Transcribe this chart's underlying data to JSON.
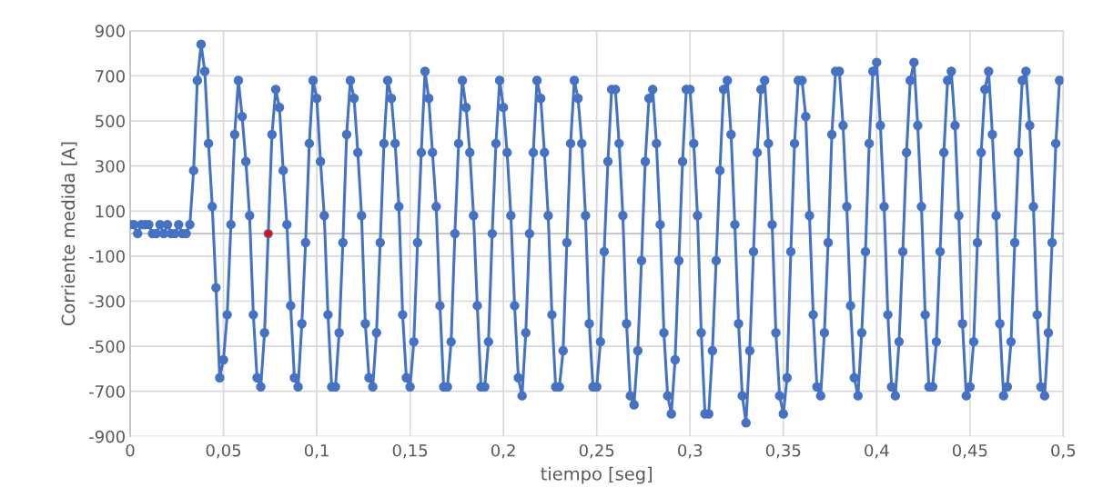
{
  "chart_data": {
    "type": "line",
    "xlabel": "tiempo [seg]",
    "ylabel": "Corriente medida [A]",
    "xlim": [
      0,
      0.5
    ],
    "ylim": [
      -900,
      900
    ],
    "xticks": [
      0,
      {
        "value": 0.05,
        "label": "0,05"
      },
      {
        "value": 0.1,
        "label": "0,1"
      },
      {
        "value": 0.15,
        "label": "0,15"
      },
      {
        "value": 0.2,
        "label": "0,2"
      },
      {
        "value": 0.25,
        "label": "0,25"
      },
      {
        "value": 0.3,
        "label": "0,3"
      },
      {
        "value": 0.35,
        "label": "0,35"
      },
      {
        "value": 0.4,
        "label": "0,4"
      },
      {
        "value": 0.45,
        "label": "0,45"
      },
      {
        "value": 0.5,
        "label": "0,5"
      }
    ],
    "yticks": [
      -900,
      -700,
      -500,
      -300,
      -100,
      100,
      300,
      500,
      700,
      900
    ],
    "grid": true,
    "marker": "circle",
    "line_style": "solid",
    "series": [
      {
        "color": "#4472c4",
        "x": [
          0,
          0.002,
          0.004,
          0.006,
          0.008,
          0.01,
          0.012,
          0.014,
          0.016,
          0.018,
          0.02,
          0.022,
          0.024,
          0.026,
          0.028,
          0.03,
          0.032,
          0.034,
          0.036,
          0.038,
          0.04,
          0.042,
          0.044,
          0.046,
          0.048,
          0.05,
          0.052,
          0.054,
          0.056,
          0.058,
          0.06,
          0.062,
          0.064,
          0.066,
          0.068,
          0.07,
          0.072,
          0.074,
          0.076,
          0.078,
          0.08,
          0.082,
          0.084,
          0.086,
          0.088,
          0.09,
          0.092,
          0.094,
          0.096,
          0.098,
          0.1,
          0.102,
          0.104,
          0.106,
          0.108,
          0.11,
          0.112,
          0.114,
          0.116,
          0.118,
          0.12,
          0.122,
          0.124,
          0.126,
          0.128,
          0.13,
          0.132,
          0.134,
          0.136,
          0.138,
          0.14,
          0.142,
          0.144,
          0.146,
          0.148,
          0.15,
          0.152,
          0.154,
          0.156,
          0.158,
          0.16,
          0.162,
          0.164,
          0.166,
          0.168,
          0.17,
          0.172,
          0.174,
          0.176,
          0.178,
          0.18,
          0.182,
          0.184,
          0.186,
          0.188,
          0.19,
          0.192,
          0.194,
          0.196,
          0.198,
          0.2,
          0.202,
          0.204,
          0.206,
          0.208,
          0.21,
          0.212,
          0.214,
          0.216,
          0.218,
          0.22,
          0.222,
          0.224,
          0.226,
          0.228,
          0.23,
          0.232,
          0.234,
          0.236,
          0.238,
          0.24,
          0.242,
          0.244,
          0.246,
          0.248,
          0.25,
          0.252,
          0.254,
          0.256,
          0.258,
          0.26,
          0.262,
          0.264,
          0.266,
          0.268,
          0.27,
          0.272,
          0.274,
          0.276,
          0.278,
          0.28,
          0.282,
          0.284,
          0.286,
          0.288,
          0.29,
          0.292,
          0.294,
          0.296,
          0.298,
          0.3,
          0.302,
          0.304,
          0.306,
          0.308,
          0.31,
          0.312,
          0.314,
          0.316,
          0.318,
          0.32,
          0.322,
          0.324,
          0.326,
          0.328,
          0.33,
          0.332,
          0.334,
          0.336,
          0.338,
          0.34,
          0.342,
          0.344,
          0.346,
          0.348,
          0.35,
          0.352,
          0.354,
          0.356,
          0.358,
          0.36,
          0.362,
          0.364,
          0.366,
          0.368,
          0.37,
          0.372,
          0.374,
          0.376,
          0.378,
          0.38,
          0.382,
          0.384,
          0.386,
          0.388,
          0.39,
          0.392,
          0.394,
          0.396,
          0.398,
          0.4,
          0.402,
          0.404,
          0.406,
          0.408,
          0.41,
          0.412,
          0.414,
          0.416,
          0.418,
          0.42,
          0.422,
          0.424,
          0.426,
          0.428,
          0.43,
          0.432,
          0.434,
          0.436,
          0.438,
          0.44,
          0.442,
          0.444,
          0.446,
          0.448,
          0.45,
          0.452,
          0.454,
          0.456,
          0.458,
          0.46,
          0.462,
          0.464,
          0.466,
          0.468,
          0.47,
          0.472,
          0.474,
          0.476,
          0.478,
          0.48,
          0.482,
          0.484,
          0.486,
          0.488,
          0.49,
          0.492,
          0.494,
          0.496,
          0.498
        ],
        "values": [
          40,
          40,
          0,
          40,
          40,
          40,
          0,
          0,
          40,
          0,
          40,
          0,
          0,
          40,
          0,
          0,
          40,
          280,
          680,
          840,
          720,
          400,
          120,
          -240,
          -640,
          -560,
          -360,
          40,
          440,
          680,
          520,
          320,
          80,
          -360,
          -640,
          -680,
          -440,
          0,
          440,
          640,
          560,
          280,
          40,
          -320,
          -640,
          -680,
          -400,
          -40,
          400,
          680,
          600,
          320,
          80,
          -360,
          -680,
          -680,
          -440,
          -40,
          440,
          680,
          600,
          360,
          80,
          -400,
          -640,
          -680,
          -440,
          -40,
          400,
          680,
          600,
          400,
          120,
          -360,
          -640,
          -680,
          -480,
          -40,
          360,
          720,
          600,
          360,
          120,
          -320,
          -680,
          -680,
          -480,
          0,
          400,
          680,
          560,
          360,
          80,
          -320,
          -680,
          -680,
          -480,
          0,
          400,
          680,
          560,
          360,
          80,
          -320,
          -640,
          -720,
          -440,
          0,
          360,
          680,
          600,
          360,
          80,
          -360,
          -680,
          -680,
          -520,
          -40,
          400,
          680,
          600,
          400,
          80,
          -400,
          -680,
          -680,
          -480,
          -80,
          320,
          640,
          640,
          400,
          80,
          -400,
          -720,
          -760,
          -520,
          -120,
          320,
          600,
          640,
          400,
          40,
          -440,
          -720,
          -800,
          -560,
          -120,
          320,
          640,
          640,
          400,
          80,
          -440,
          -800,
          -800,
          -520,
          -120,
          280,
          640,
          680,
          440,
          40,
          -400,
          -720,
          -840,
          -520,
          -80,
          360,
          640,
          680,
          400,
          40,
          -440,
          -720,
          -800,
          -640,
          -80,
          400,
          680,
          680,
          520,
          80,
          -360,
          -680,
          -720,
          -440,
          -40,
          440,
          720,
          720,
          480,
          120,
          -320,
          -640,
          -720,
          -440,
          -80,
          400,
          720,
          760,
          480,
          120,
          -360,
          -680,
          -720,
          -480,
          -80,
          360,
          680,
          760,
          480,
          120,
          -360,
          -680,
          -680,
          -480,
          -80,
          360,
          680,
          720,
          480,
          80,
          -400,
          -720,
          -680,
          -480,
          -40,
          360,
          640,
          720,
          440,
          80,
          -400,
          -720,
          -680,
          -480,
          -40,
          360,
          680,
          720,
          480,
          120,
          -360,
          -680,
          -720,
          -440,
          -40,
          400,
          680
        ]
      },
      {
        "type": "scatter",
        "color": "#ff0000",
        "x": [
          0.074
        ],
        "values": [
          0
        ]
      }
    ]
  }
}
